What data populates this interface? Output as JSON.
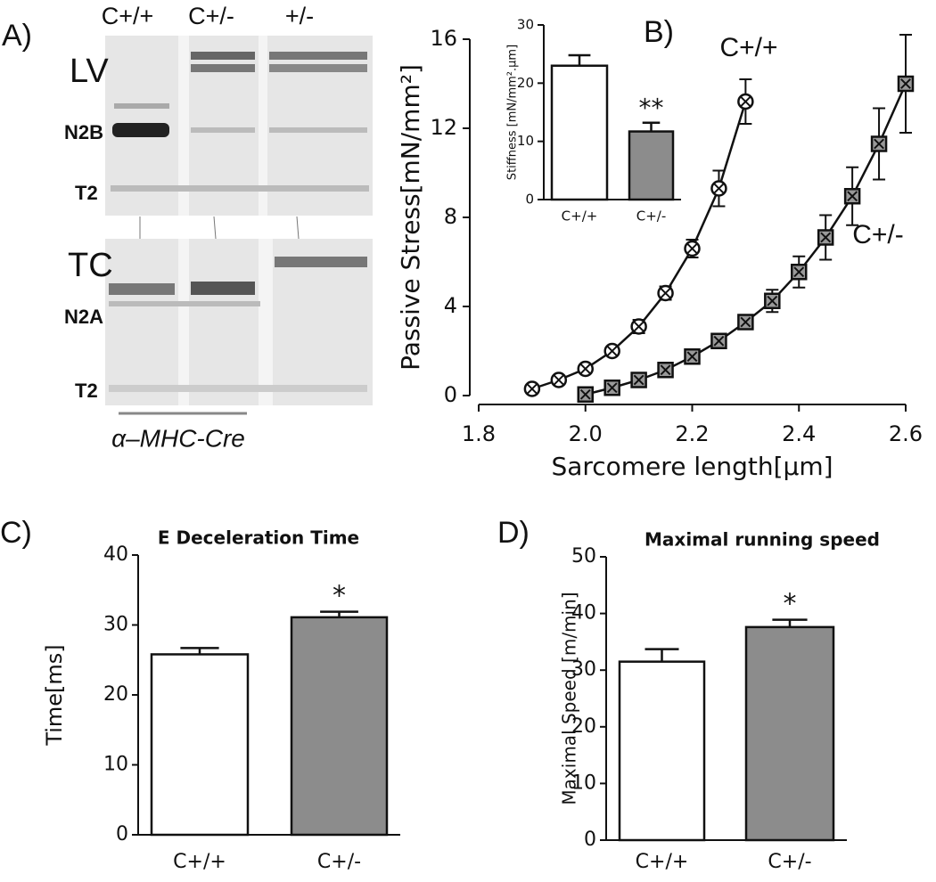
{
  "gel": {
    "panel_label": "A)",
    "lanes": [
      "C+/+",
      "C+/-",
      "+/-"
    ],
    "blots": [
      {
        "tissue": "LV",
        "bands": [
          "N2B",
          "T2"
        ]
      },
      {
        "tissue": "TC",
        "bands": [
          "N2A",
          "T2"
        ]
      }
    ],
    "caption": "α–MHC-Cre"
  },
  "chart_data": [
    {
      "type": "line",
      "panel_label": "B)",
      "x_label": "Sarcomere length[μm]",
      "y_label": "Passive Stress[mN/mm²]",
      "xlim": [
        1.8,
        2.6
      ],
      "xticks": [
        1.8,
        {
          "value": 2,
          "label": "2.0"
        },
        2.2,
        2.4,
        2.6
      ],
      "ylim": [
        0,
        16
      ],
      "yticks": [
        0,
        4,
        8,
        12,
        16
      ],
      "series": [
        {
          "name": "C+/+",
          "color": "#ffffff",
          "marker": "circle",
          "x": [
            1.9,
            1.95,
            2.0,
            2.05,
            2.1,
            2.15,
            2.2,
            2.25,
            2.3
          ],
          "values": [
            0.3,
            0.7,
            1.2,
            2.0,
            3.1,
            4.6,
            6.6,
            9.3,
            13.2
          ],
          "errors": [
            0.2,
            0.2,
            0.2,
            0.2,
            0.3,
            0.3,
            0.4,
            0.8,
            1.0
          ]
        },
        {
          "name": "C+/-",
          "color": "#999999",
          "marker": "square",
          "x": [
            2.0,
            2.05,
            2.1,
            2.15,
            2.2,
            2.25,
            2.3,
            2.35,
            2.4,
            2.45,
            2.5,
            2.55,
            2.6
          ],
          "values": [
            0.05,
            0.35,
            0.7,
            1.15,
            1.75,
            2.45,
            3.3,
            4.25,
            5.55,
            7.1,
            8.95,
            11.3,
            14.0
          ],
          "errors": [
            0.1,
            0.1,
            0.1,
            0.1,
            0.15,
            0.2,
            0.3,
            0.5,
            0.7,
            1.0,
            1.3,
            1.6,
            2.2
          ]
        }
      ]
    },
    {
      "type": "bar",
      "y_label": "Stiffness [mN/mm².μm]",
      "categories": [
        "C+/+",
        "C+/-"
      ],
      "values": [
        23,
        11.7
      ],
      "errors": [
        1.8,
        1.5
      ],
      "colors": [
        "#ffffff",
        "#8c8c8c"
      ],
      "ylim": [
        0,
        30
      ],
      "yticks": [
        0,
        10,
        20,
        30
      ],
      "annotation": "**"
    },
    {
      "type": "bar",
      "panel_label": "C)",
      "title": "E Deceleration Time",
      "y_label": "Time[ms]",
      "categories": [
        "C+/+",
        "C+/-"
      ],
      "values": [
        25.8,
        31.1
      ],
      "errors": [
        0.9,
        0.8
      ],
      "colors": [
        "#ffffff",
        "#8c8c8c"
      ],
      "ylim": [
        0,
        40
      ],
      "yticks": [
        0,
        10,
        20,
        30,
        40
      ],
      "annotation": "*"
    },
    {
      "type": "bar",
      "panel_label": "D)",
      "title": "Maximal running speed",
      "y_label": "Maximal Speed [m/min]",
      "categories": [
        "C+/+",
        "C+/-"
      ],
      "values": [
        31.5,
        37.6
      ],
      "errors": [
        2.2,
        1.3
      ],
      "colors": [
        "#ffffff",
        "#8c8c8c"
      ],
      "ylim": [
        0,
        50
      ],
      "yticks": [
        0,
        10,
        20,
        30,
        40,
        50
      ],
      "annotation": "*"
    }
  ]
}
